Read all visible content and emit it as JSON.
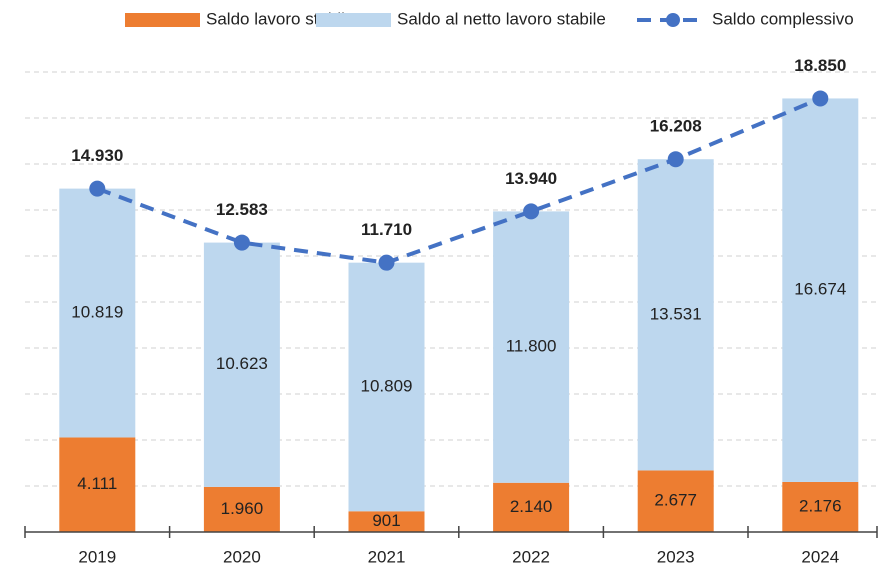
{
  "chart_data": {
    "type": "stacked_bar_line",
    "categories": [
      "2019",
      "2020",
      "2021",
      "2022",
      "2023",
      "2024"
    ],
    "series": [
      {
        "name": "Saldo lavoro stabile",
        "color": "#ed7d31",
        "values": [
          4111,
          1960,
          901,
          2140,
          2677,
          2176
        ],
        "value_labels": [
          "4.111",
          "1.960",
          "901",
          "2.140",
          "2.677",
          "2.176"
        ]
      },
      {
        "name": "Saldo al netto lavoro stabile",
        "color": "#bdd7ee",
        "values": [
          10819,
          10623,
          10809,
          11800,
          13531,
          16674
        ],
        "value_labels": [
          "10.819",
          "10.623",
          "10.809",
          "11.800",
          "13.531",
          "16.674"
        ]
      },
      {
        "name": "Saldo complessivo",
        "color": "#4472c4",
        "type": "line",
        "values": [
          14930,
          12583,
          11710,
          13940,
          16208,
          18850
        ],
        "value_labels": [
          "14.930",
          "12.583",
          "11.710",
          "13.940",
          "16.208",
          "18.850"
        ]
      }
    ],
    "ylim": [
      0,
      20000
    ],
    "yticks": [
      0,
      2000,
      4000,
      6000,
      8000,
      10000,
      12000,
      14000,
      16000,
      18000,
      20000
    ],
    "show_ytick_labels": false,
    "grid": true,
    "legend": "top"
  }
}
